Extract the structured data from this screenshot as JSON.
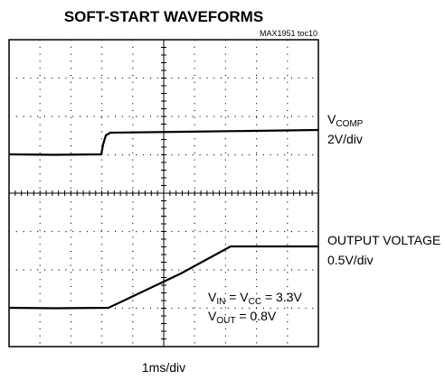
{
  "title": "SOFT-START WAVEFORMS",
  "figure_id": "MAX1951 toc10",
  "traces": [
    {
      "label": {
        "main": "V",
        "sub": "COMP"
      },
      "scale": "2V/div"
    },
    {
      "label": "OUTPUT VOLTAGE",
      "scale": "0.5V/div"
    }
  ],
  "conditions": {
    "line1": [
      "V",
      "IN",
      " = V",
      "CC",
      " = 3.3V"
    ],
    "line2": [
      "V",
      "OUT",
      " = 0.8V"
    ]
  },
  "time_scale": "1ms/div"
}
